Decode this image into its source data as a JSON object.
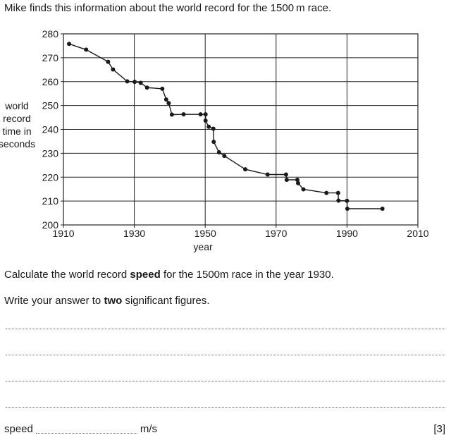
{
  "question": {
    "intro_before": "Mike finds this information about the world record for the 1500",
    "intro_unit": "m",
    "intro_after": " race.",
    "calc_before": "Calculate the world record ",
    "calc_bold": "speed",
    "calc_after": " for the 1500m race in the year 1930.",
    "write_before": "Write your answer to ",
    "write_bold": "two",
    "write_after": " significant figures.",
    "answer_label": "speed",
    "answer_unit": "m/s",
    "marks": "[3]"
  },
  "chart_data": {
    "type": "line",
    "title": "",
    "xlabel": "year",
    "ylabel_lines": [
      "world",
      "record",
      "time in",
      "seconds"
    ],
    "xlim": [
      1910,
      2010
    ],
    "ylim": [
      200,
      280
    ],
    "xticks": [
      1910,
      1930,
      1950,
      1970,
      1990,
      2010
    ],
    "yticks": [
      200,
      210,
      220,
      230,
      240,
      250,
      260,
      270,
      280
    ],
    "grid": true,
    "series": [
      {
        "name": "world record",
        "step_last": true,
        "points": [
          [
            1911.6,
            275.8
          ],
          [
            1916.4,
            273.4
          ],
          [
            1922.6,
            268.3
          ],
          [
            1924.0,
            265.1
          ],
          [
            1928.0,
            260.1
          ],
          [
            1930.1,
            259.9
          ],
          [
            1931.8,
            259.5
          ],
          [
            1933.6,
            257.5
          ],
          [
            1937.9,
            257.0
          ],
          [
            1939.0,
            252.5
          ],
          [
            1939.7,
            251.0
          ],
          [
            1940.6,
            246.2
          ],
          [
            1943.9,
            246.3
          ],
          [
            1948.7,
            246.3
          ],
          [
            1950.1,
            246.3
          ],
          [
            1950.1,
            243.7
          ],
          [
            1951.0,
            241.1
          ],
          [
            1952.3,
            240.3
          ],
          [
            1952.4,
            234.8
          ],
          [
            1953.9,
            230.4
          ],
          [
            1955.4,
            228.9
          ],
          [
            1961.3,
            223.3
          ],
          [
            1967.6,
            221.1
          ],
          [
            1972.8,
            221.1
          ],
          [
            1973.0,
            218.9
          ],
          [
            1976.0,
            218.9
          ],
          [
            1976.2,
            217.5
          ],
          [
            1977.7,
            214.9
          ],
          [
            1984.2,
            213.4
          ],
          [
            1987.5,
            213.4
          ],
          [
            1987.6,
            210.2
          ],
          [
            1990.0,
            210.1
          ],
          [
            1990.1,
            206.8
          ],
          [
            2000.0,
            206.8
          ]
        ]
      }
    ]
  }
}
